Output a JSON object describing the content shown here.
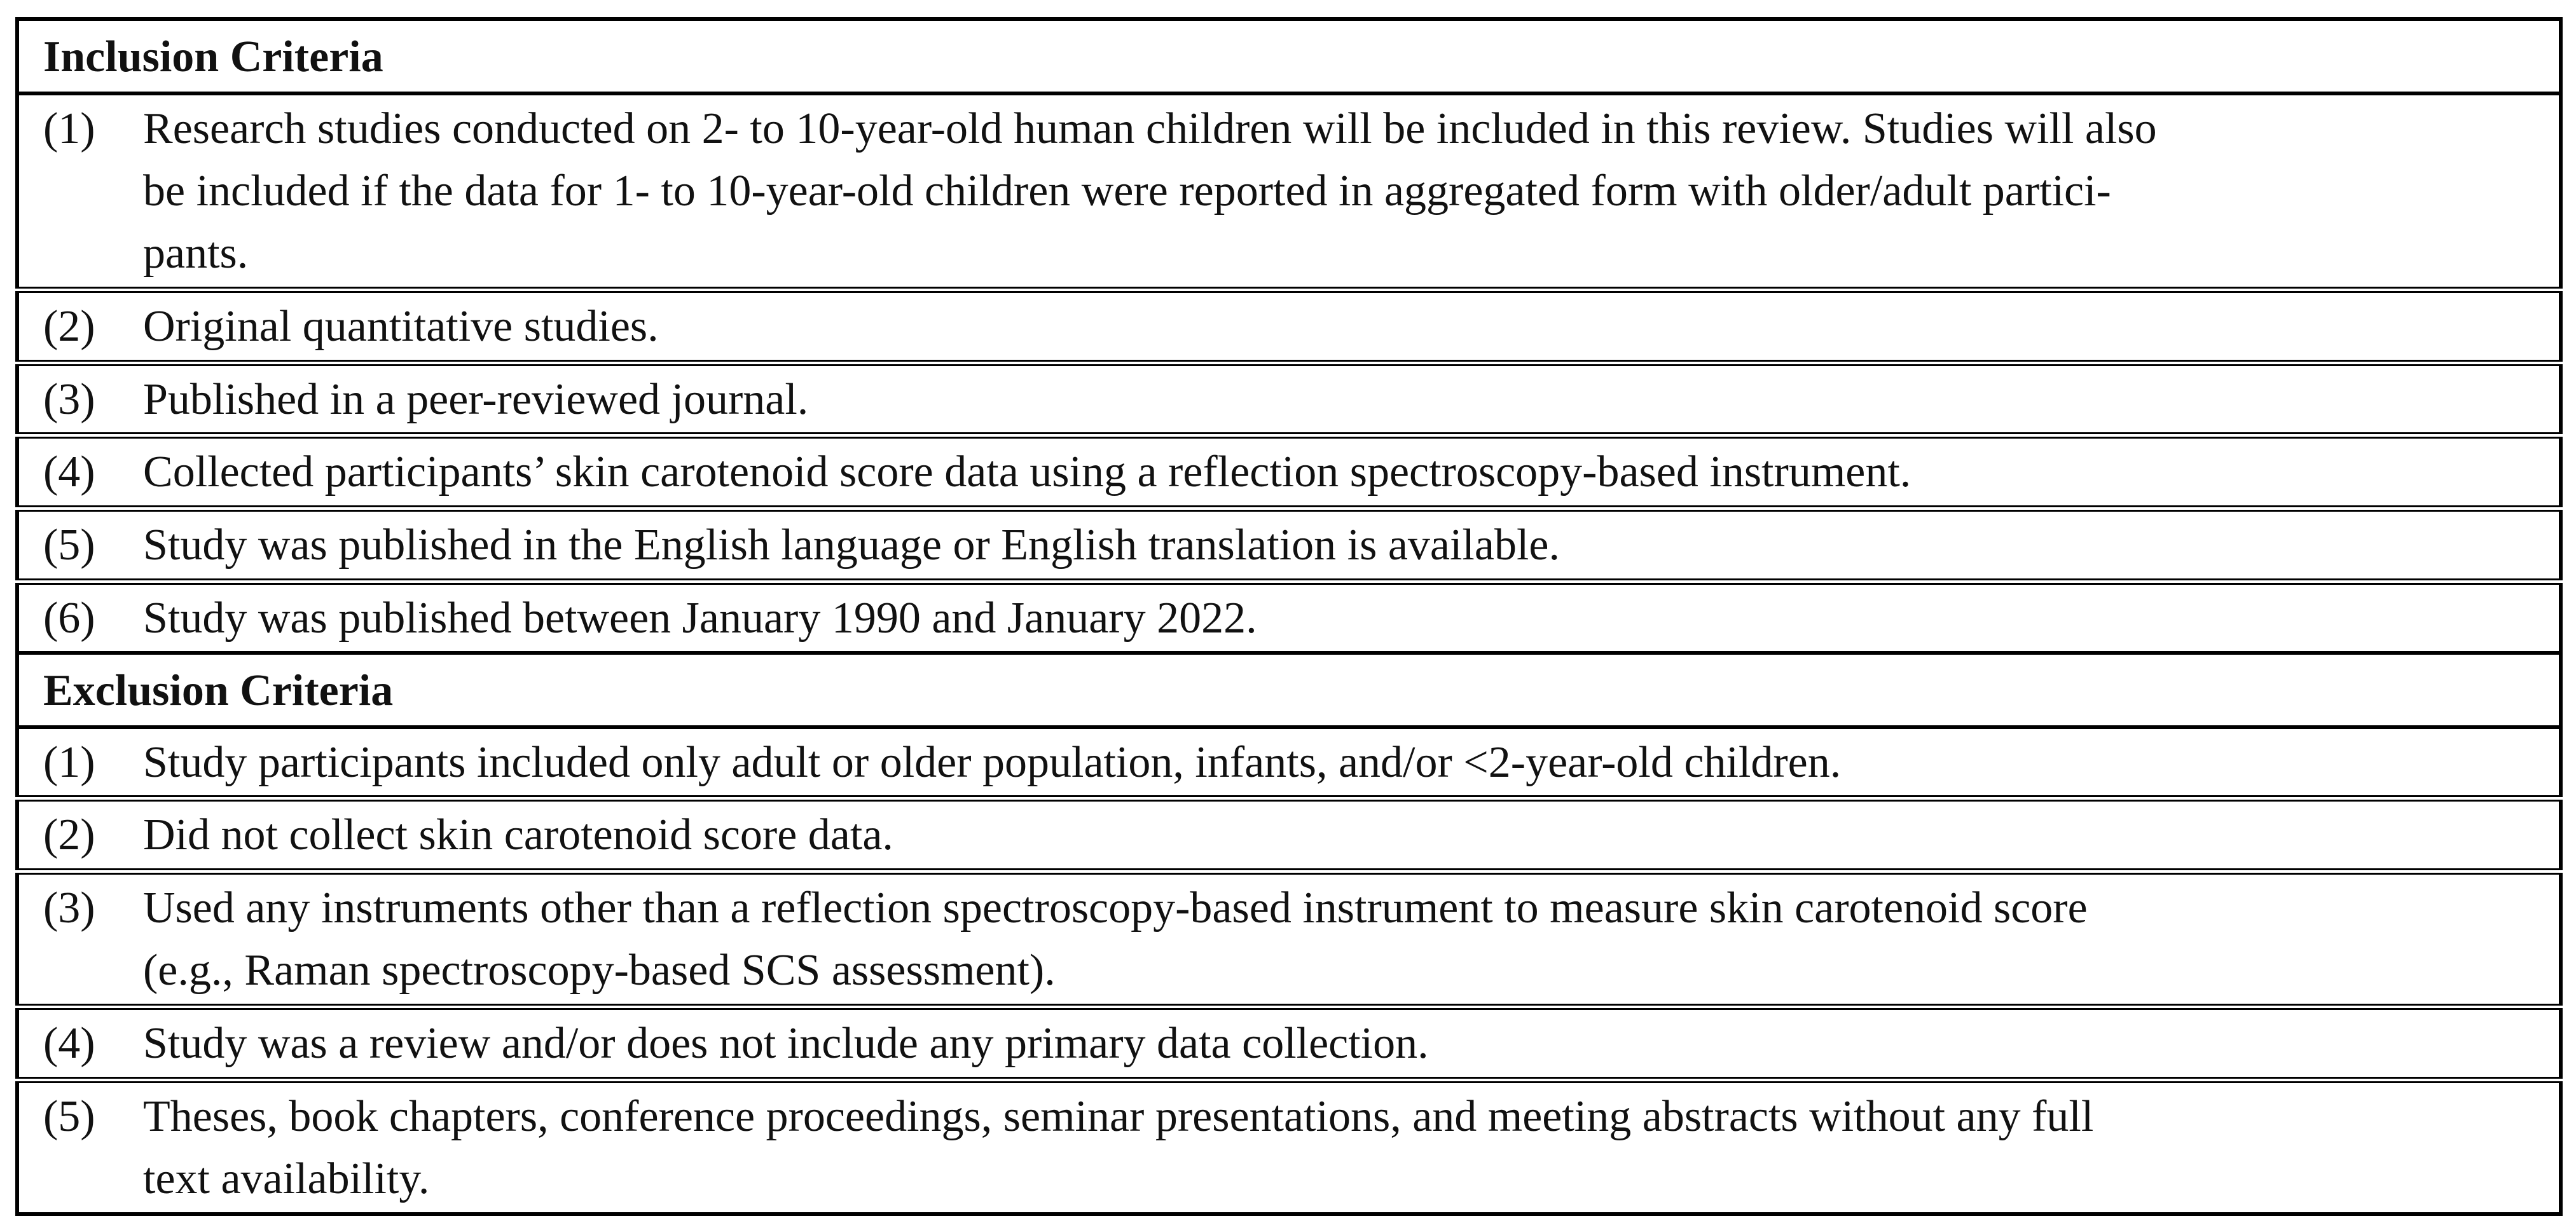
{
  "page": {
    "background": "#ffffff",
    "text_color": "#111111",
    "border_color": "#000000"
  },
  "table": {
    "sections": [
      {
        "header": "Inclusion Criteria",
        "items": [
          {
            "number": "(1)",
            "lines": [
              "Research studies conducted on 2- to 10-year-old human children will be included in this review. Studies will also",
              "be included if the data for 1- to 10-year-old children were reported in aggregated form with older/adult partici-",
              "pants."
            ]
          },
          {
            "number": "(2)",
            "lines": [
              "Original quantitative studies."
            ]
          },
          {
            "number": "(3)",
            "lines": [
              "Published in a peer-reviewed journal."
            ]
          },
          {
            "number": "(4)",
            "lines": [
              "Collected participants’ skin carotenoid score data using a reflection spectroscopy-based instrument."
            ]
          },
          {
            "number": "(5)",
            "lines": [
              "Study was published in the English language or English translation is available."
            ]
          },
          {
            "number": "(6)",
            "lines": [
              "Study was published between January 1990 and January 2022."
            ]
          }
        ]
      },
      {
        "header": "Exclusion Criteria",
        "items": [
          {
            "number": "(1)",
            "lines": [
              "Study participants included only adult or older population, infants, and/or <2-year-old children."
            ]
          },
          {
            "number": "(2)",
            "lines": [
              "Did not collect skin carotenoid score data."
            ]
          },
          {
            "number": "(3)",
            "lines": [
              "Used any instruments other than a reflection spectroscopy-based instrument to measure skin carotenoid score",
              "(e.g., Raman spectroscopy-based SCS assessment)."
            ]
          },
          {
            "number": "(4)",
            "lines": [
              "Study was a review and/or does not include any primary data collection."
            ]
          },
          {
            "number": "(5)",
            "lines": [
              "Theses, book chapters, conference proceedings, seminar presentations, and meeting abstracts without any full",
              "text availability."
            ]
          }
        ]
      }
    ]
  }
}
